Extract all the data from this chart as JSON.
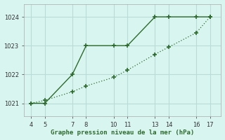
{
  "line1_x": [
    4,
    5,
    7,
    8,
    10,
    11,
    13,
    14,
    16,
    17
  ],
  "line1_y": [
    1021,
    1021,
    1022,
    1023,
    1023,
    1023,
    1024,
    1024,
    1024,
    1024
  ],
  "line2_x": [
    4,
    5,
    7,
    8,
    10,
    11,
    13,
    14,
    16,
    17
  ],
  "line2_y": [
    1021,
    1021.1,
    1021.4,
    1021.6,
    1021.9,
    1022.15,
    1022.7,
    1022.95,
    1023.45,
    1024
  ],
  "line_color": "#2d6a2d",
  "bg_color": "#d8f5f0",
  "grid_color": "#b8ddd8",
  "xlabel": "Graphe pression niveau de la mer (hPa)",
  "xlim": [
    3.5,
    17.8
  ],
  "ylim": [
    1020.55,
    1024.45
  ],
  "yticks": [
    1021,
    1022,
    1023,
    1024
  ],
  "xticks": [
    4,
    5,
    7,
    8,
    10,
    11,
    13,
    14,
    16,
    17
  ]
}
